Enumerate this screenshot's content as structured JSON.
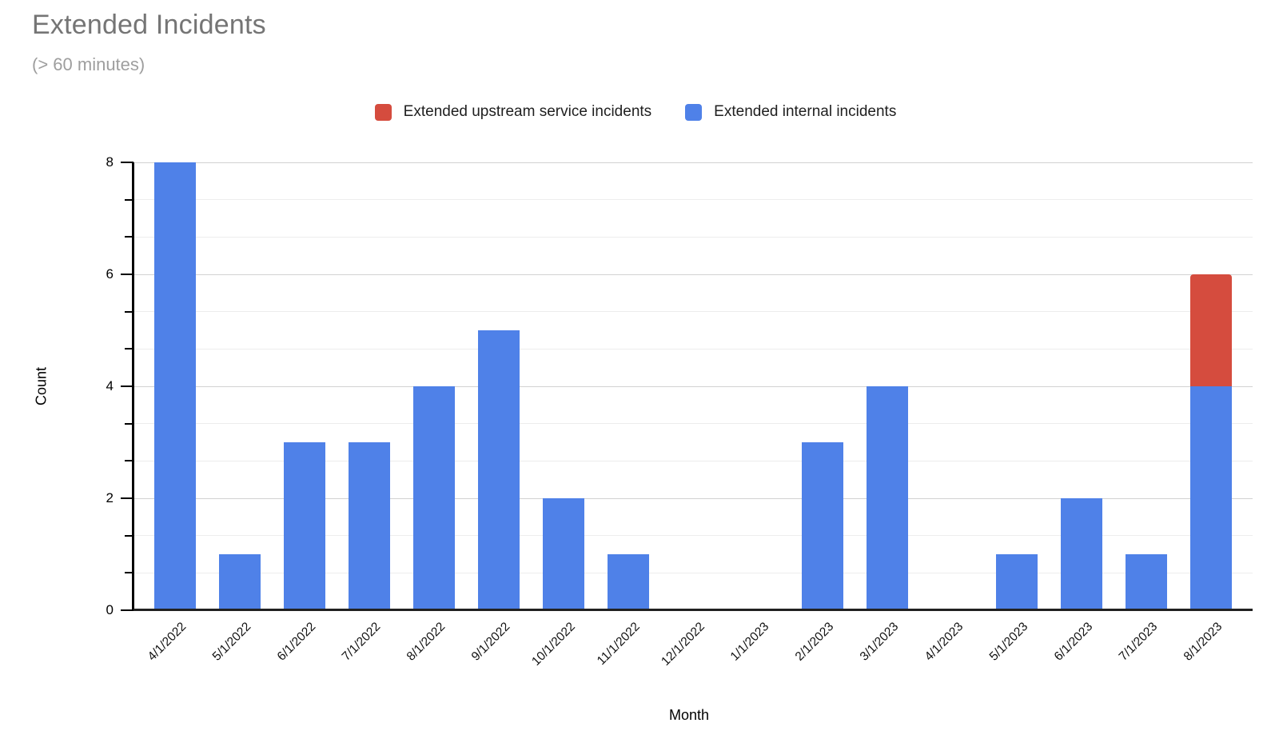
{
  "chart_data": {
    "type": "bar",
    "stacked": true,
    "title": "Extended Incidents",
    "subtitle": "(> 60 minutes)",
    "xlabel": "Month",
    "ylabel": "Count",
    "ylim": [
      0,
      8
    ],
    "y_major_ticks": [
      0,
      2,
      4,
      6,
      8
    ],
    "y_minor_divisions_per_major": 3,
    "grid": true,
    "legend_position": "top",
    "categories": [
      "4/1/2022",
      "5/1/2022",
      "6/1/2022",
      "7/1/2022",
      "8/1/2022",
      "9/1/2022",
      "10/1/2022",
      "11/1/2022",
      "12/1/2022",
      "1/1/2023",
      "2/1/2023",
      "3/1/2023",
      "4/1/2023",
      "5/1/2023",
      "6/1/2023",
      "7/1/2023",
      "8/1/2023"
    ],
    "series": [
      {
        "name": "Extended upstream service incidents",
        "color": "#d54c3e",
        "stack_position": "top",
        "values": [
          0,
          0,
          0,
          0,
          0,
          0,
          0,
          0,
          0,
          0,
          0,
          0,
          0,
          0,
          0,
          0,
          2
        ]
      },
      {
        "name": "Extended internal incidents",
        "color": "#4f81e8",
        "stack_position": "bottom",
        "values": [
          8,
          1,
          3,
          3,
          4,
          5,
          2,
          1,
          0,
          0,
          3,
          4,
          0,
          1,
          2,
          1,
          4
        ]
      }
    ],
    "colors": {
      "title_text": "#757575",
      "subtitle_text": "#9e9e9e",
      "axis_line": "#000000",
      "baseline": "#212121",
      "gridline_major": "#d2d2d2",
      "gridline_minor": "#ededed",
      "tick_label_text": "#000000",
      "legend_text": "#1f1f1f"
    }
  }
}
